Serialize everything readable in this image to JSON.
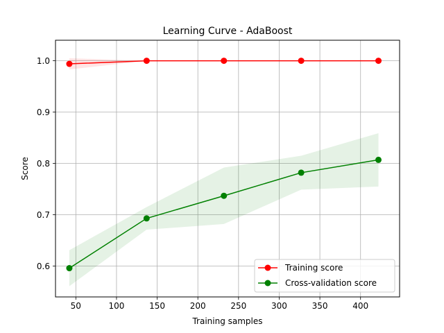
{
  "chart_data": {
    "type": "line",
    "title": "Learning Curve - AdaBoost",
    "xlabel": "Training samples",
    "ylabel": "Score",
    "xlim": [
      25,
      448
    ],
    "ylim": [
      0.54,
      1.04
    ],
    "xticks": [
      50,
      100,
      150,
      200,
      250,
      300,
      350,
      400
    ],
    "yticks": [
      0.6,
      0.7,
      0.8,
      0.9,
      1.0
    ],
    "xtick_labels": [
      "50",
      "100",
      "150",
      "200",
      "250",
      "300",
      "350",
      "400"
    ],
    "ytick_labels": [
      "0.6",
      "0.7",
      "0.8",
      "0.9",
      "1.0"
    ],
    "grid": true,
    "legend_position": "lower right",
    "series": [
      {
        "name": "Training score",
        "color": "#ff0000",
        "marker": "circle",
        "x": [
          42,
          137,
          232,
          327,
          422
        ],
        "y": [
          0.994,
          1.0,
          1.0,
          1.0,
          1.0
        ],
        "band_low": [
          0.983,
          1.0,
          1.0,
          1.0,
          1.0
        ],
        "band_high": [
          1.005,
          1.0,
          1.0,
          1.0,
          1.0
        ]
      },
      {
        "name": "Cross-validation score",
        "color": "#008000",
        "marker": "circle",
        "x": [
          42,
          137,
          232,
          327,
          422
        ],
        "y": [
          0.596,
          0.693,
          0.737,
          0.782,
          0.807
        ],
        "band_low": [
          0.561,
          0.671,
          0.682,
          0.749,
          0.755
        ],
        "band_high": [
          0.631,
          0.715,
          0.792,
          0.815,
          0.859
        ]
      }
    ]
  }
}
